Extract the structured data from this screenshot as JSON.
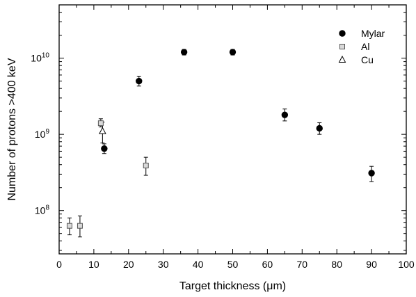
{
  "chart_data": {
    "type": "scatter",
    "xlabel": "Target thickness (μm)",
    "ylabel": "Number of protons >400 keV",
    "x_ticks": [
      "0",
      "10",
      "20",
      "30",
      "40",
      "50",
      "60",
      "70",
      "80",
      "90",
      "100"
    ],
    "y_ticks": [
      {
        "base": "10",
        "exp": "8"
      },
      {
        "base": "10",
        "exp": "9"
      },
      {
        "base": "10",
        "exp": "10"
      }
    ],
    "xlim": [
      0,
      100
    ],
    "ylim": [
      27000000,
      50000000000
    ],
    "y_scale": "log",
    "grid": false,
    "legend_position": "top-right",
    "series": [
      {
        "name": "Mylar",
        "marker": "filled-circle",
        "color": "#000000",
        "points": [
          {
            "x": 13,
            "y": 650000000,
            "ylo": 560000000,
            "yhi": 750000000
          },
          {
            "x": 23,
            "y": 5000000000,
            "ylo": 4300000000,
            "yhi": 5800000000
          },
          {
            "x": 36,
            "y": 12000000000,
            "ylo": 11000000000,
            "yhi": 13000000000
          },
          {
            "x": 50,
            "y": 12000000000,
            "ylo": 11000000000,
            "yhi": 13000000000
          },
          {
            "x": 65,
            "y": 1800000000,
            "ylo": 1500000000,
            "yhi": 2150000000
          },
          {
            "x": 75,
            "y": 1200000000,
            "ylo": 1000000000,
            "yhi": 1420000000
          },
          {
            "x": 90,
            "y": 310000000,
            "ylo": 240000000,
            "yhi": 380000000
          }
        ]
      },
      {
        "name": "Al",
        "marker": "open-square",
        "color": "#808080",
        "points": [
          {
            "x": 3,
            "y": 63000000,
            "ylo": 48000000,
            "yhi": 80000000
          },
          {
            "x": 6,
            "y": 63000000,
            "ylo": 45000000,
            "yhi": 85000000
          },
          {
            "x": 12,
            "y": 1400000000,
            "ylo": 1250000000,
            "yhi": 1600000000
          },
          {
            "x": 25,
            "y": 390000000,
            "ylo": 290000000,
            "yhi": 500000000
          }
        ]
      },
      {
        "name": "Cu",
        "marker": "open-triangle",
        "color": "#000000",
        "points": [
          {
            "x": 12.5,
            "y": 1100000000,
            "ylo": 770000000,
            "yhi": 1450000000
          }
        ]
      }
    ]
  }
}
